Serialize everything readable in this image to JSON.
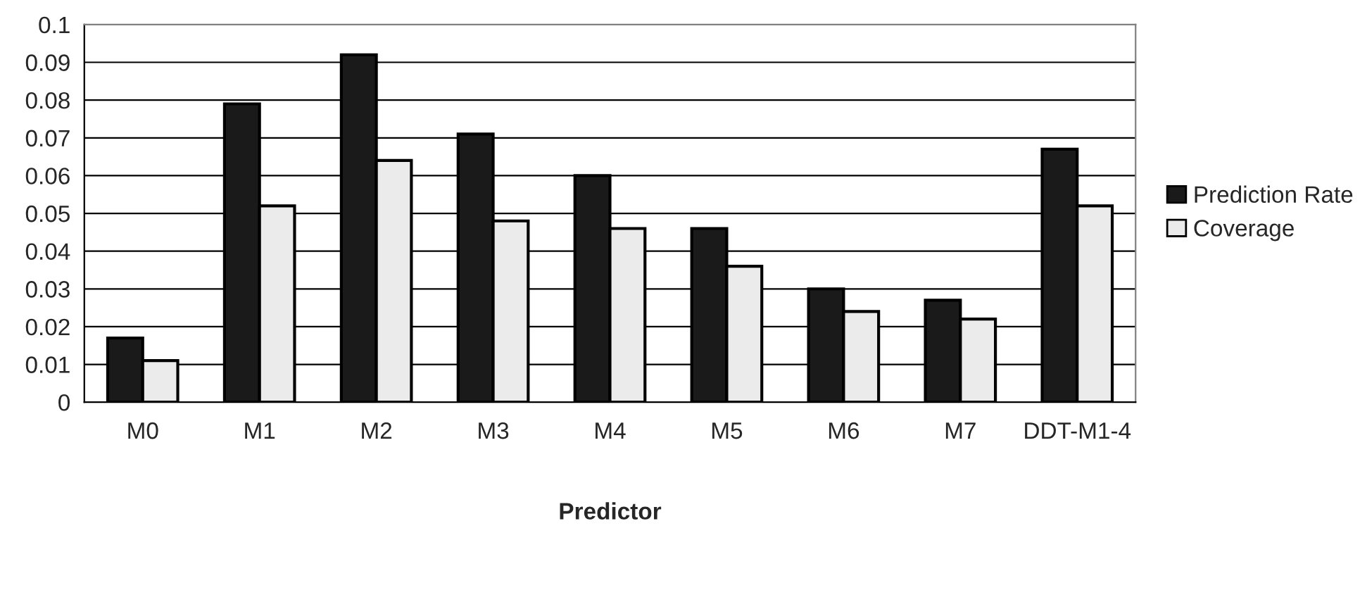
{
  "chart_data": {
    "type": "bar",
    "xlabel": "Predictor",
    "categories": [
      "M0",
      "M1",
      "M2",
      "M3",
      "M4",
      "M5",
      "M6",
      "M7",
      "DDT-M1-4"
    ],
    "series": [
      {
        "name": "Prediction Rate",
        "color": "#1a1a1a",
        "values": [
          0.017,
          0.079,
          0.092,
          0.071,
          0.06,
          0.046,
          0.03,
          0.027,
          0.067
        ]
      },
      {
        "name": "Coverage",
        "color": "#ebebeb",
        "values": [
          0.011,
          0.052,
          0.064,
          0.048,
          0.046,
          0.036,
          0.024,
          0.022,
          0.052
        ]
      }
    ],
    "ylim": [
      0,
      0.1
    ],
    "yticks": [
      0,
      0.01,
      0.02,
      0.03,
      0.04,
      0.05,
      0.06,
      0.07,
      0.08,
      0.09,
      0.1
    ],
    "grid": "y",
    "legend": "right"
  }
}
